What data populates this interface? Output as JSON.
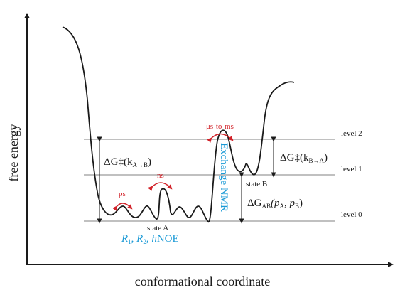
{
  "axes": {
    "y_label": "free energy",
    "x_label": "conformational coordinate"
  },
  "levels": {
    "level2": "level 2",
    "level1": "level 1",
    "level0": "level 0"
  },
  "states": {
    "state_a": "state A",
    "state_b": "state B"
  },
  "barriers": {
    "forward_main": "ΔG‡(k",
    "forward_sub": "A→B",
    "forward_close": ")",
    "reverse_main": "ΔG‡(k",
    "reverse_sub": "B→A",
    "reverse_close": ")",
    "dg_main": "ΔG",
    "dg_sub": "AB",
    "dg_args_1": "(p",
    "dg_args_sub1": "A",
    "dg_args_2": ", p",
    "dg_args_sub2": "B",
    "dg_args_3": ")"
  },
  "timescales": {
    "ps": "ps",
    "ns": "ns",
    "us_ms": "μs-to-ms"
  },
  "methods": {
    "relax_r": "R",
    "relax_r1_sub": "1",
    "relax_sep1": ", ",
    "relax_r2": "R",
    "relax_r2_sub": "2",
    "relax_sep2": ", ",
    "relax_h": "h",
    "relax_noe": "NOE",
    "exchange": "Exchange NMR"
  },
  "colors": {
    "red": "#d2232a",
    "blue": "#1b9ad6",
    "line": "#1a1a1a",
    "level_line": "#9a9a9a"
  }
}
